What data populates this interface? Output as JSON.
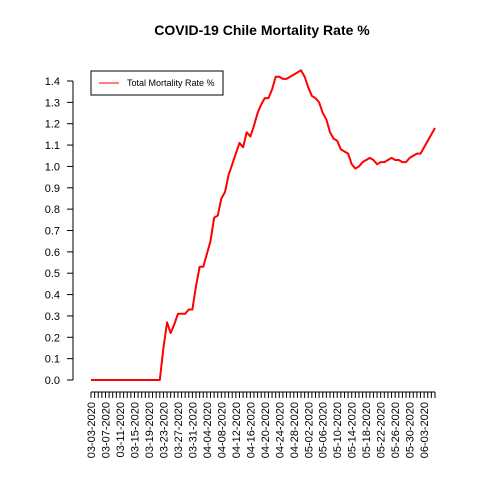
{
  "chart_data": {
    "type": "line",
    "title": "COVID-19 Chile Mortality Rate %",
    "xlabel": "",
    "ylabel": "",
    "ylim": [
      0,
      1.45
    ],
    "yticks": [
      "0.0",
      "0.1",
      "0.2",
      "0.3",
      "0.4",
      "0.5",
      "0.6",
      "0.7",
      "0.8",
      "0.9",
      "1.0",
      "1.1",
      "1.2",
      "1.3",
      "1.4"
    ],
    "legend": {
      "position": "top-left",
      "entries": [
        "Total Mortality Rate %"
      ]
    },
    "grid": false,
    "series_color": "#ff0000",
    "x": [
      "03-03-2020",
      "03-04-2020",
      "03-05-2020",
      "03-06-2020",
      "03-07-2020",
      "03-08-2020",
      "03-09-2020",
      "03-10-2020",
      "03-11-2020",
      "03-12-2020",
      "03-13-2020",
      "03-14-2020",
      "03-15-2020",
      "03-16-2020",
      "03-17-2020",
      "03-18-2020",
      "03-19-2020",
      "03-20-2020",
      "03-21-2020",
      "03-22-2020",
      "03-23-2020",
      "03-24-2020",
      "03-25-2020",
      "03-26-2020",
      "03-27-2020",
      "03-28-2020",
      "03-29-2020",
      "03-30-2020",
      "03-31-2020",
      "04-01-2020",
      "04-02-2020",
      "04-03-2020",
      "04-04-2020",
      "04-05-2020",
      "04-06-2020",
      "04-07-2020",
      "04-08-2020",
      "04-09-2020",
      "04-10-2020",
      "04-11-2020",
      "04-12-2020",
      "04-13-2020",
      "04-14-2020",
      "04-15-2020",
      "04-16-2020",
      "04-17-2020",
      "04-18-2020",
      "04-19-2020",
      "04-20-2020",
      "04-21-2020",
      "04-22-2020",
      "04-23-2020",
      "04-24-2020",
      "04-25-2020",
      "04-26-2020",
      "04-27-2020",
      "04-28-2020",
      "04-29-2020",
      "04-30-2020",
      "05-01-2020",
      "05-02-2020",
      "05-03-2020",
      "05-04-2020",
      "05-05-2020",
      "05-06-2020",
      "05-07-2020",
      "05-08-2020",
      "05-09-2020",
      "05-10-2020",
      "05-11-2020",
      "05-12-2020",
      "05-13-2020",
      "05-14-2020",
      "05-15-2020",
      "05-16-2020",
      "05-17-2020",
      "05-18-2020",
      "05-19-2020",
      "05-20-2020",
      "05-21-2020",
      "05-22-2020",
      "05-23-2020",
      "05-24-2020",
      "05-25-2020",
      "05-26-2020",
      "05-27-2020",
      "05-28-2020",
      "05-29-2020",
      "05-30-2020",
      "05-31-2020",
      "06-01-2020",
      "06-02-2020",
      "06-03-2020",
      "06-04-2020",
      "06-05-2020",
      "06-06-2020"
    ],
    "series": [
      {
        "name": "Total Mortality Rate %",
        "values": [
          0,
          0,
          0,
          0,
          0,
          0,
          0,
          0,
          0,
          0,
          0,
          0,
          0,
          0,
          0,
          0,
          0,
          0,
          0,
          0,
          0.15,
          0.27,
          0.22,
          0.26,
          0.31,
          0.31,
          0.31,
          0.33,
          0.33,
          0.44,
          0.53,
          0.53,
          0.59,
          0.65,
          0.76,
          0.77,
          0.85,
          0.88,
          0.96,
          1.01,
          1.06,
          1.11,
          1.09,
          1.16,
          1.14,
          1.19,
          1.25,
          1.29,
          1.32,
          1.32,
          1.36,
          1.42,
          1.42,
          1.41,
          1.41,
          1.42,
          1.43,
          1.44,
          1.45,
          1.42,
          1.37,
          1.33,
          1.32,
          1.3,
          1.25,
          1.22,
          1.16,
          1.13,
          1.12,
          1.08,
          1.07,
          1.06,
          1.01,
          0.99,
          1.0,
          1.02,
          1.03,
          1.04,
          1.03,
          1.01,
          1.02,
          1.02,
          1.03,
          1.04,
          1.03,
          1.03,
          1.02,
          1.02,
          1.04,
          1.05,
          1.06,
          1.06,
          1.09,
          1.12,
          1.15,
          1.18
        ]
      }
    ],
    "xticks": [
      "03-03-2020",
      "03-07-2020",
      "03-11-2020",
      "03-15-2020",
      "03-19-2020",
      "03-23-2020",
      "03-27-2020",
      "03-31-2020",
      "04-04-2020",
      "04-08-2020",
      "04-12-2020",
      "04-16-2020",
      "04-20-2020",
      "04-24-2020",
      "04-28-2020",
      "05-02-2020",
      "05-06-2020",
      "05-10-2020",
      "05-14-2020",
      "05-18-2020",
      "05-22-2020",
      "05-26-2020",
      "05-30-2020",
      "06-03-2020"
    ]
  }
}
